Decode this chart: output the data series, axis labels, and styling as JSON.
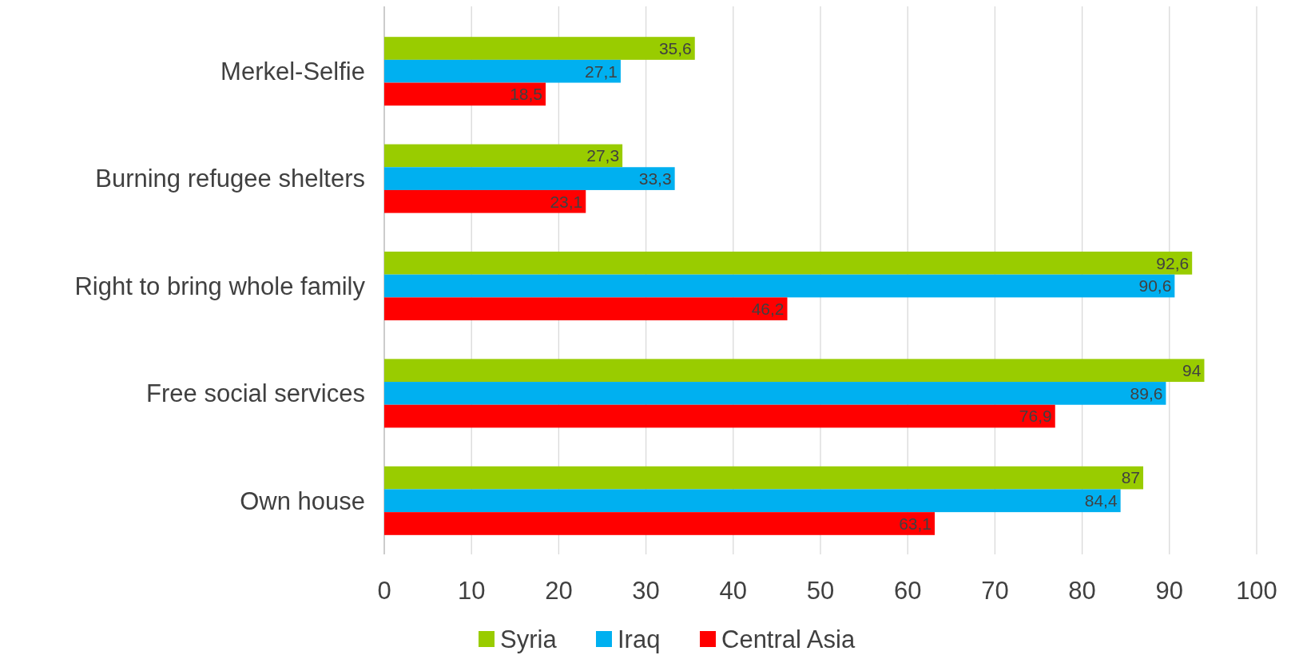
{
  "chart_data": {
    "type": "bar",
    "orientation": "horizontal",
    "categories": [
      "Merkel-Selfie",
      "Burning refugee shelters",
      "Right to bring whole family",
      "Free social services",
      "Own house"
    ],
    "series": [
      {
        "name": "Syria",
        "color": "#99cc00",
        "values": [
          35.6,
          27.3,
          92.6,
          94,
          87
        ],
        "value_labels": [
          "35,6",
          "27,3",
          "92,6",
          "94",
          "87"
        ]
      },
      {
        "name": "Iraq",
        "color": "#00b0f0",
        "values": [
          27.1,
          33.3,
          90.6,
          89.6,
          84.4
        ],
        "value_labels": [
          "27,1",
          "33,3",
          "90,6",
          "89,6",
          "84,4"
        ]
      },
      {
        "name": "Central Asia",
        "color": "#ff0000",
        "values": [
          18.5,
          23.1,
          46.2,
          76.9,
          63.1
        ],
        "value_labels": [
          "18,5",
          "23,1",
          "46,2",
          "76,9",
          "63,1"
        ]
      }
    ],
    "xlim": [
      0,
      100
    ],
    "xticks": [
      0,
      10,
      20,
      30,
      40,
      50,
      60,
      70,
      80,
      90,
      100
    ],
    "grid": "x",
    "legend": "bottom"
  }
}
